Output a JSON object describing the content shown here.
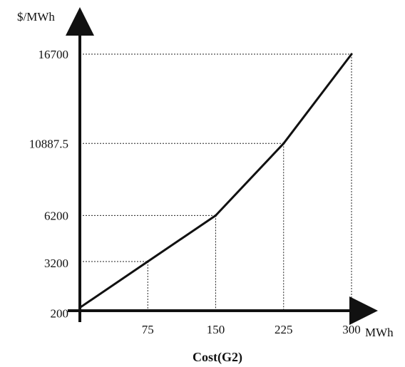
{
  "chart_data": {
    "type": "line",
    "title": "Cost(G2)",
    "xlabel": "MWh",
    "ylabel": "$/MWh",
    "x": [
      0,
      75,
      150,
      225,
      300
    ],
    "y": [
      200,
      3200,
      6200,
      10887.5,
      16700
    ],
    "xticks": [
      "75",
      "150",
      "225",
      "300"
    ],
    "yticks": [
      "200",
      "3200",
      "6200",
      "10887.5",
      "16700"
    ],
    "xlim": [
      0,
      300
    ],
    "ylim": [
      0,
      16700
    ],
    "grid": "dotted guide lines to each breakpoint",
    "line_color": "#111111"
  }
}
